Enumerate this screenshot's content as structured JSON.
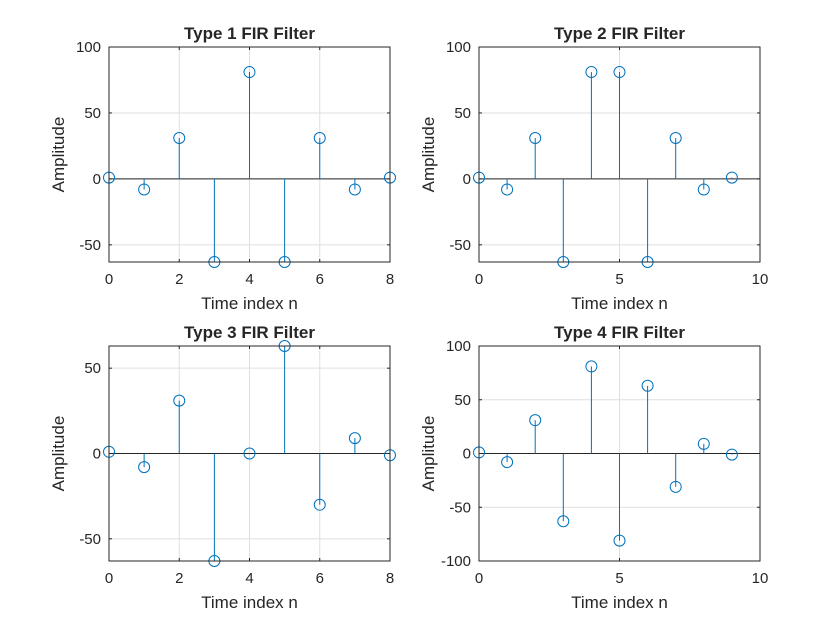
{
  "chart_data": [
    {
      "type": "stem",
      "title": "Type 1 FIR Filter",
      "xlabel": "Time index n",
      "ylabel": "Amplitude",
      "xlim": [
        0,
        8
      ],
      "ylim": [
        -63,
        100
      ],
      "xticks": [
        0,
        2,
        4,
        6,
        8
      ],
      "yticks": [
        -50,
        0,
        50,
        100
      ],
      "grid": true,
      "color": "#0072bd",
      "x": [
        0,
        1,
        2,
        3,
        4,
        5,
        6,
        7,
        8
      ],
      "y": [
        1,
        -8,
        31,
        -63,
        81,
        -63,
        31,
        -8,
        1
      ]
    },
    {
      "type": "stem",
      "title": "Type 2 FIR Filter",
      "xlabel": "Time index n",
      "ylabel": "Amplitude",
      "xlim": [
        0,
        10
      ],
      "ylim": [
        -63,
        100
      ],
      "xticks": [
        0,
        5,
        10
      ],
      "yticks": [
        -50,
        0,
        50,
        100
      ],
      "grid": true,
      "color": "#0072bd",
      "x": [
        0,
        1,
        2,
        3,
        4,
        5,
        6,
        7,
        8,
        9
      ],
      "y": [
        1,
        -8,
        31,
        -63,
        81,
        81,
        -63,
        31,
        -8,
        1
      ]
    },
    {
      "type": "stem",
      "title": "Type 3 FIR Filter",
      "xlabel": "Time index n",
      "ylabel": "Amplitude",
      "xlim": [
        0,
        8
      ],
      "ylim": [
        -63,
        63
      ],
      "xticks": [
        0,
        2,
        4,
        6,
        8
      ],
      "yticks": [
        -50,
        0,
        50
      ],
      "grid": true,
      "color": "#0072bd",
      "x": [
        0,
        1,
        2,
        3,
        4,
        5,
        6,
        7,
        8
      ],
      "y": [
        1,
        -8,
        31,
        -63,
        0,
        63,
        -30,
        9,
        -1
      ]
    },
    {
      "type": "stem",
      "title": "Type 4 FIR Filter",
      "xlabel": "Time index n",
      "ylabel": "Amplitude",
      "xlim": [
        0,
        10
      ],
      "ylim": [
        -100,
        100
      ],
      "xticks": [
        0,
        5,
        10
      ],
      "yticks": [
        -100,
        -50,
        0,
        50,
        100
      ],
      "grid": true,
      "color": "#0072bd",
      "x": [
        0,
        1,
        2,
        3,
        4,
        5,
        6,
        7,
        8,
        9
      ],
      "y": [
        1,
        -8,
        31,
        -63,
        81,
        -81,
        63,
        -31,
        9,
        -1
      ]
    }
  ]
}
